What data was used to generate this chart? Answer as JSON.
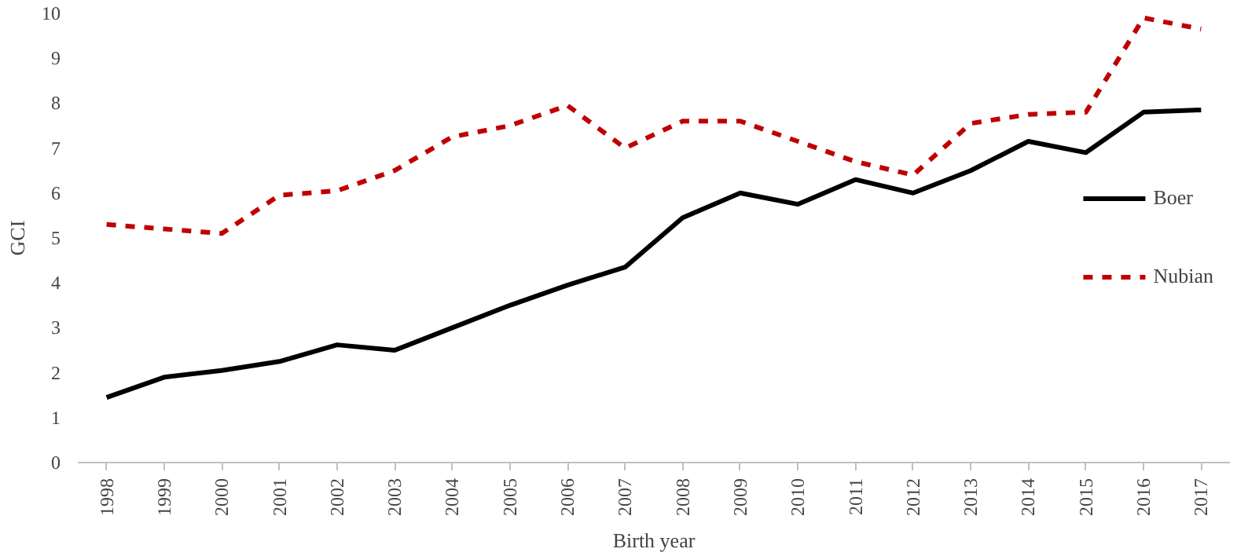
{
  "chart_data": {
    "type": "line",
    "xlabel": "Birth year",
    "ylabel": "GCI",
    "categories": [
      "1998",
      "1999",
      "2000",
      "2001",
      "2002",
      "2003",
      "2004",
      "2005",
      "2006",
      "2007",
      "2008",
      "2009",
      "2010",
      "2011",
      "2012",
      "2013",
      "2014",
      "2015",
      "2016",
      "2017"
    ],
    "series": [
      {
        "name": "Boer",
        "color": "#000000",
        "line_style": "solid",
        "values": [
          1.45,
          1.9,
          2.05,
          2.25,
          2.62,
          2.5,
          3.0,
          3.5,
          3.95,
          4.35,
          5.45,
          6.0,
          5.75,
          6.3,
          6.0,
          6.5,
          7.15,
          6.9,
          7.8,
          7.85
        ]
      },
      {
        "name": "Nubian",
        "color": "#c00000",
        "line_style": "dashed",
        "values": [
          5.3,
          5.2,
          5.1,
          5.95,
          6.05,
          6.5,
          7.25,
          7.5,
          7.95,
          7.0,
          7.6,
          7.6,
          7.15,
          6.7,
          6.4,
          7.55,
          7.75,
          7.8,
          9.9,
          9.65
        ]
      }
    ],
    "ylim": [
      0,
      10
    ],
    "yticks": [
      0,
      1,
      2,
      3,
      4,
      5,
      6,
      7,
      8,
      9,
      10
    ],
    "grid": false,
    "legend": "right"
  }
}
